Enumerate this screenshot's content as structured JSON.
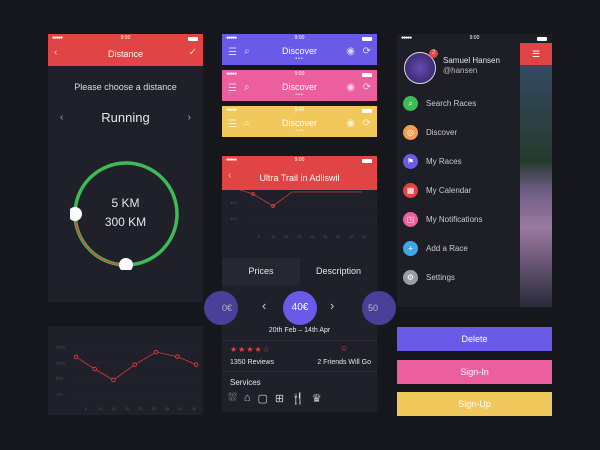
{
  "status": {
    "time": "9:00",
    "signal": "●●●●●"
  },
  "distance": {
    "title": "Distance",
    "prompt": "Please choose a distance",
    "sport": "Running",
    "min": "5 KM",
    "max": "300 KM",
    "colors": {
      "header": "#e04444",
      "arc": "#3dbb54",
      "arc_low": "#e04444"
    }
  },
  "discover_bars": [
    {
      "title": "Discover",
      "color": "#6a5ae8"
    },
    {
      "title": "Discover",
      "color": "#ec5f9f"
    },
    {
      "title": "Discover",
      "color": "#f1c85b"
    }
  ],
  "race": {
    "title": "Ultra Trail in Adliswil",
    "tabs": [
      "Prices",
      "Description"
    ],
    "prices": [
      "0€",
      "40€",
      "50"
    ],
    "dates": "20th Feb – 14th Apr",
    "rating": 4,
    "rating_max": 5,
    "reviews": "1350 Reviews",
    "friends": "2 Friends Will Go",
    "services_label": "Services",
    "services_icons": [
      "shower-icon",
      "hanger-icon",
      "chip-icon",
      "first-aid-icon",
      "food-icon",
      "trophy-icon"
    ],
    "mini_chart_y": [
      "300",
      "100"
    ],
    "mini_chart_x": [
      "5",
      "10",
      "15",
      "20",
      "25",
      "30",
      "35",
      "40",
      "45"
    ]
  },
  "menu": {
    "user_name": "Samuel Hansen",
    "handle": "@hansen",
    "badge": "2",
    "items": [
      {
        "label": "Search Races",
        "color": "#3dbb54",
        "icon": "search-icon"
      },
      {
        "label": "Discover",
        "color": "#f0a050",
        "icon": "discover-icon"
      },
      {
        "label": "My Races",
        "color": "#6a5ae8",
        "icon": "flag-icon"
      },
      {
        "label": "My Calendar",
        "color": "#e04444",
        "icon": "calendar-icon"
      },
      {
        "label": "My Notifications",
        "color": "#ec5f9f",
        "icon": "notification-icon"
      },
      {
        "label": "Add a Race",
        "color": "#3fa7e8",
        "icon": "plus-icon"
      },
      {
        "label": "Settings",
        "color": "#9a9ca6",
        "icon": "gear-icon"
      }
    ]
  },
  "buttons": [
    {
      "label": "Delete",
      "color": "#6a5ae8"
    },
    {
      "label": "Sign-In",
      "color": "#ec5f9f"
    },
    {
      "label": "Sign-Up",
      "color": "#f1c85b"
    }
  ],
  "chart_data": {
    "type": "line",
    "y_tick_labels": [
      "2000",
      "1500",
      "500",
      "100"
    ],
    "x_tick_labels": [
      "5",
      "10",
      "15",
      "20",
      "25",
      "30",
      "35",
      "40",
      "45"
    ],
    "x": [
      1,
      8,
      15,
      23,
      31,
      39,
      46
    ],
    "y": [
      1690,
      1100,
      450,
      1390,
      1840,
      1700,
      1390
    ],
    "color": "#d23c3c",
    "grid": true
  }
}
